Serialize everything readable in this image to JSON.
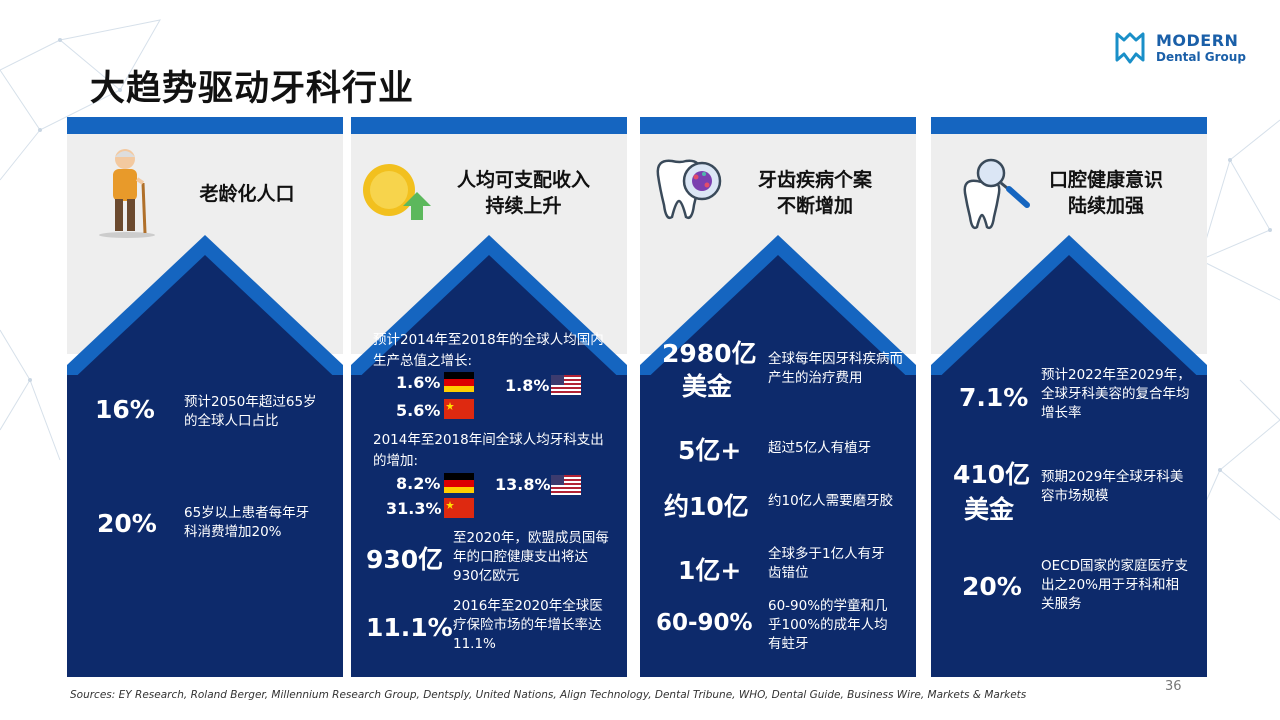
{
  "title": "大趋势驱动牙科行业",
  "logo": {
    "line1": "MODERN",
    "line2": "Dental Group"
  },
  "columns": [
    {
      "heading": "老龄化人口",
      "icon": "elderly-person-icon",
      "stats": [
        {
          "value": "16%",
          "desc": "预计2050年超过65岁的全球人口占比"
        },
        {
          "value": "20%",
          "desc": "65岁以上患者每年牙科消费增加20%"
        }
      ]
    },
    {
      "heading_line1": "人均可支配收入",
      "heading_line2": "持续上升",
      "icon": "coin-growth-icon",
      "gdp": {
        "intro": "预计2014年至2018年的全球人均国内生产总值之增长:",
        "de": "1.6%",
        "us": "1.8%",
        "cn": "5.6%"
      },
      "dental": {
        "intro": "2014年至2018年间全球人均牙科支出的增加:",
        "de": "8.2%",
        "us": "13.8%",
        "cn": "31.3%"
      },
      "stats": [
        {
          "value": "930亿",
          "desc": "至2020年，欧盟成员国每年的口腔健康支出将达930亿欧元"
        },
        {
          "value": "11.1%",
          "desc": "2016年至2020年全球医疗保险市场的年增长率达11.1%"
        }
      ]
    },
    {
      "heading_line1": "牙齿疾病个案",
      "heading_line2": "不断增加",
      "icon": "tooth-bacteria-icon",
      "stats": [
        {
          "value_line1": "2980亿",
          "value_line2": "美金",
          "desc": "全球每年因牙科疾病而产生的治疗费用"
        },
        {
          "value": "5亿+",
          "desc": "超过5亿人有植牙"
        },
        {
          "value": "约10亿",
          "desc": "约10亿人需要磨牙胶"
        },
        {
          "value": "1亿+",
          "desc": "全球多于1亿人有牙齿错位"
        },
        {
          "value": "60-90%",
          "desc": "60-90%的学童和几乎100%的成年人均有蛀牙"
        }
      ]
    },
    {
      "heading_line1": "口腔健康意识",
      "heading_line2": "陆续加强",
      "icon": "tooth-magnifier-icon",
      "stats": [
        {
          "value": "7.1%",
          "desc": "预计2022年至2029年，全球牙科美容的复合年均增长率"
        },
        {
          "value_line1": "410亿",
          "value_line2": "美金",
          "desc": "预期2029年全球牙科美容市场规模"
        },
        {
          "value": "20%",
          "desc": "OECD国家的家庭医疗支出之20%用于牙科和相关服务"
        }
      ]
    }
  ],
  "sources": "Sources: EY Research, Roland Berger, Millennium Research Group, Dentsply, United Nations, Align Technology, Dental Tribune, WHO, Dental Guide, Business Wire, Markets & Markets",
  "page_number": "36",
  "colors": {
    "bar_blue": "#1565c0",
    "panel_navy": "#0d2a6b",
    "head_grey": "#eeeeee",
    "accent_light": "#2f7fd6"
  }
}
